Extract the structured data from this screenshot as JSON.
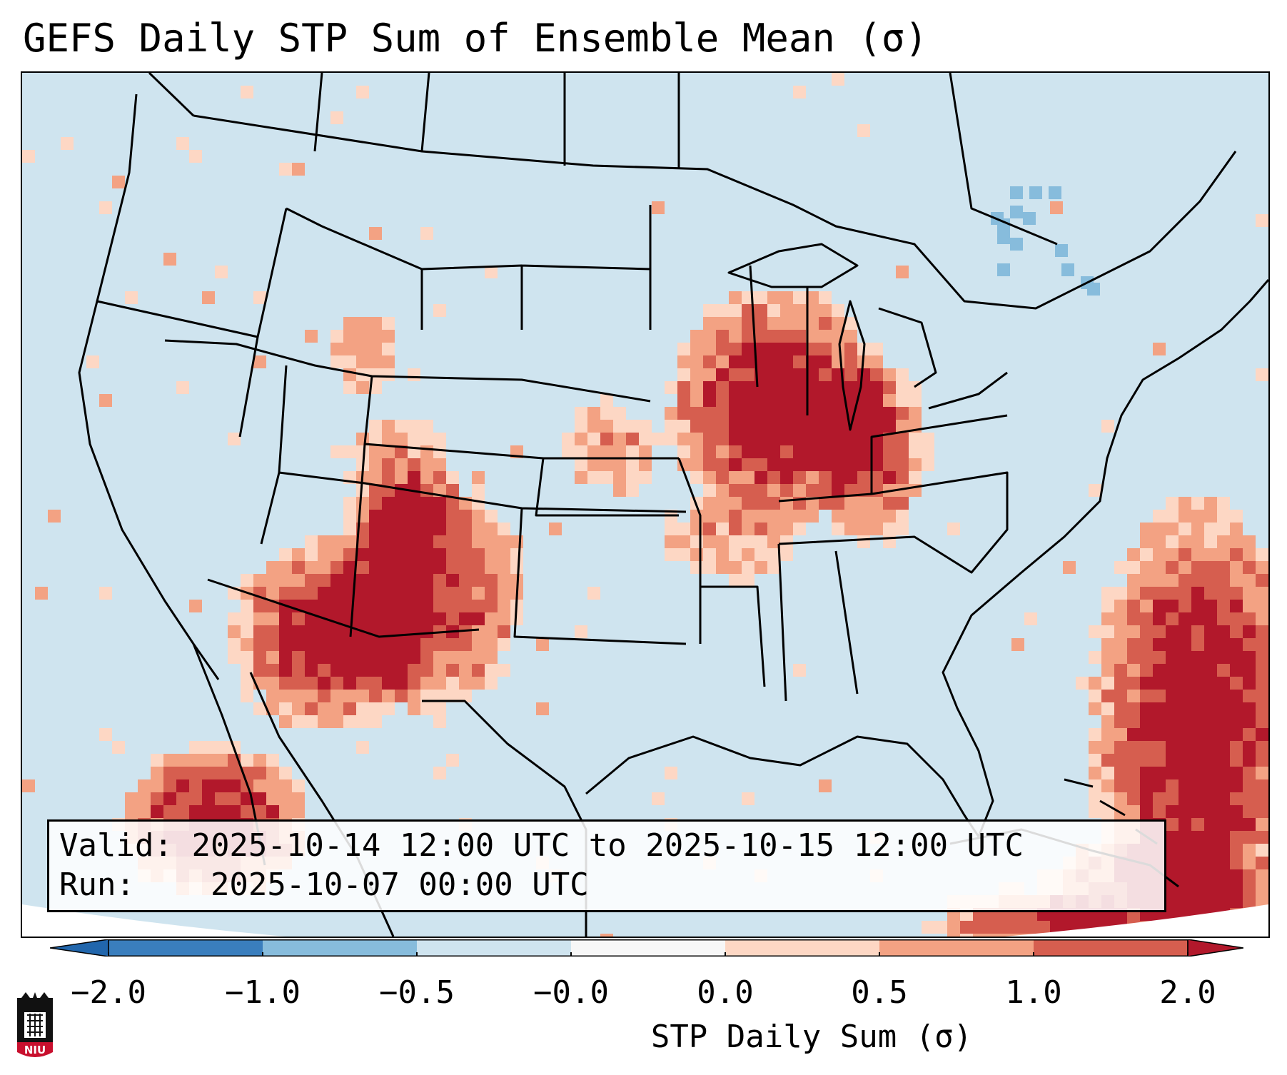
{
  "title": "GEFS Daily STP Sum of Ensemble Mean (σ)",
  "info": {
    "valid_label": "Valid:",
    "valid_value": "2025-10-14 12:00 UTC to 2025-10-15 12:00 UTC",
    "run_label": "Run:",
    "run_value": "2025-10-07 00:00 UTC"
  },
  "colorbar": {
    "label": "STP Daily Sum (σ)",
    "ticks": [
      "−2.0",
      "−1.0",
      "−0.5",
      "−0.0",
      "0.0",
      "0.5",
      "1.0",
      "2.0"
    ],
    "colors": [
      "#3a7ebd",
      "#87bcdc",
      "#cfe4ef",
      "#f7f7f7",
      "#fdd7c4",
      "#f3a283",
      "#d65e4f",
      "#b2182b"
    ]
  },
  "map": {
    "background_color": "#cfe4ef",
    "outside_color": "#ffffff",
    "features": [
      "us-state-borders",
      "canada-provinces",
      "mexico-coastline",
      "great-lakes",
      "cuba-bahamas"
    ]
  },
  "logo": {
    "text": "NIU",
    "icon": "niu-tower-icon"
  }
}
